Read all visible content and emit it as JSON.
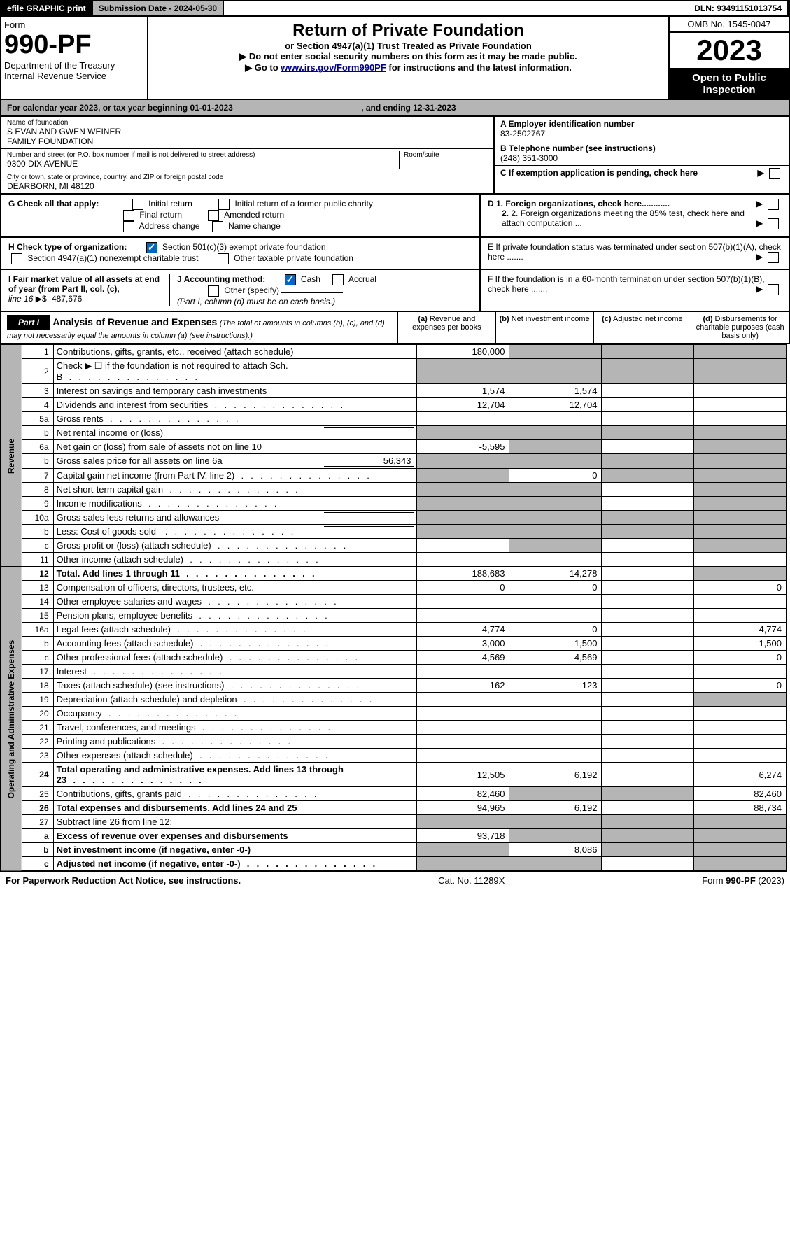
{
  "topbar": {
    "efile": "efile GRAPHIC print",
    "submission": "Submission Date - 2024-05-30",
    "dln": "DLN: 93491151013754"
  },
  "header": {
    "form_label": "Form",
    "form_num": "990-PF",
    "dept1": "Department of the Treasury",
    "dept2": "Internal Revenue Service",
    "title": "Return of Private Foundation",
    "subtitle": "or Section 4947(a)(1) Trust Treated as Private Foundation",
    "instr1": "▶ Do not enter social security numbers on this form as it may be made public.",
    "instr2_pre": "▶ Go to ",
    "instr2_link": "www.irs.gov/Form990PF",
    "instr2_post": " for instructions and the latest information.",
    "omb": "OMB No. 1545-0047",
    "year": "2023",
    "open1": "Open to Public",
    "open2": "Inspection"
  },
  "band": {
    "text_pre": "For calendar year 2023, or tax year beginning ",
    "beg": "01-01-2023",
    "text_mid": " , and ending ",
    "end": "12-31-2023"
  },
  "name_block": {
    "label_name": "Name of foundation",
    "name1": "S EVAN AND GWEN WEINER",
    "name2": "FAMILY FOUNDATION",
    "label_addr": "Number and street (or P.O. box number if mail is not delivered to street address)",
    "addr": "9300 DIX AVENUE",
    "room_label": "Room/suite",
    "label_city": "City or town, state or province, country, and ZIP or foreign postal code",
    "city": "DEARBORN, MI  48120",
    "label_ein": "A Employer identification number",
    "ein": "83-2502767",
    "label_phone": "B Telephone number (see instructions)",
    "phone": "(248) 351-3000",
    "label_c": "C If exemption application is pending, check here"
  },
  "g_block": {
    "label": "G Check all that apply:",
    "o1": "Initial return",
    "o2": "Initial return of a former public charity",
    "o3": "Final return",
    "o4": "Amended return",
    "o5": "Address change",
    "o6": "Name change"
  },
  "h_block": {
    "label": "H Check type of organization:",
    "o1": "Section 501(c)(3) exempt private foundation",
    "o2": "Section 4947(a)(1) nonexempt charitable trust",
    "o3": "Other taxable private foundation"
  },
  "i_block": {
    "label": "I Fair market value of all assets at end of year (from Part II, col. (c),",
    "line": "line 16",
    "val": "487,676"
  },
  "j_block": {
    "label": "J Accounting method:",
    "o1": "Cash",
    "o2": "Accrual",
    "o3": "Other (specify)",
    "note": "(Part I, column (d) must be on cash basis.)"
  },
  "d_block": {
    "d1": "D 1. Foreign organizations, check here............",
    "d2": "2. Foreign organizations meeting the 85% test, check here and attach computation ...",
    "e": "E  If private foundation status was terminated under section 507(b)(1)(A), check here .......",
    "f": "F  If the foundation is in a 60-month termination under section 507(b)(1)(B), check here ......."
  },
  "part1": {
    "tab": "Part I",
    "title": "Analysis of Revenue and Expenses",
    "title_note": "(The total of amounts in columns (b), (c), and (d) may not necessarily equal the amounts in column (a) (see instructions).)",
    "col_a": "Revenue and expenses per books",
    "col_b": "Net investment income",
    "col_c": "Adjusted net income",
    "col_d": "Disbursements for charitable purposes (cash basis only)",
    "pfx_a": "(a)",
    "pfx_b": "(b)",
    "pfx_c": "(c)",
    "pfx_d": "(d)"
  },
  "vert": {
    "rev": "Revenue",
    "exp": "Operating and Administrative Expenses"
  },
  "rows": [
    {
      "n": "1",
      "desc": "Contributions, gifts, grants, etc., received (attach schedule)",
      "a": "180,000",
      "grey_b": true,
      "grey_c": true,
      "grey_d": true
    },
    {
      "n": "2",
      "desc": "Check ▶ ☐ if the foundation is not required to attach Sch. B",
      "dotted": true,
      "grey_a": true,
      "grey_b": true,
      "grey_c": true,
      "grey_d": true
    },
    {
      "n": "3",
      "desc": "Interest on savings and temporary cash investments",
      "a": "1,574",
      "b": "1,574"
    },
    {
      "n": "4",
      "desc": "Dividends and interest from securities",
      "dotted": true,
      "a": "12,704",
      "b": "12,704"
    },
    {
      "n": "5a",
      "desc": "Gross rents",
      "dotted": true
    },
    {
      "n": "b",
      "desc": "Net rental income or (loss)",
      "underline": true,
      "grey_a": true,
      "grey_b": true,
      "grey_c": true,
      "grey_d": true
    },
    {
      "n": "6a",
      "desc": "Net gain or (loss) from sale of assets not on line 10",
      "a": "-5,595",
      "grey_b": true,
      "grey_d": true
    },
    {
      "n": "b",
      "desc": "Gross sales price for all assets on line 6a",
      "underline_val": "56,343",
      "grey_a": true,
      "grey_b": true,
      "grey_c": true,
      "grey_d": true
    },
    {
      "n": "7",
      "desc": "Capital gain net income (from Part IV, line 2)",
      "dotted": true,
      "grey_a": true,
      "b": "0",
      "grey_c": true,
      "grey_d": true
    },
    {
      "n": "8",
      "desc": "Net short-term capital gain",
      "dotted": true,
      "grey_a": true,
      "grey_b": true,
      "grey_d": true
    },
    {
      "n": "9",
      "desc": "Income modifications",
      "dotted": true,
      "grey_a": true,
      "grey_b": true,
      "grey_d": true
    },
    {
      "n": "10a",
      "desc": "Gross sales less returns and allowances",
      "underline": true,
      "grey_a": true,
      "grey_b": true,
      "grey_c": true,
      "grey_d": true
    },
    {
      "n": "b",
      "desc": "Less: Cost of goods sold",
      "dotted": true,
      "underline": true,
      "grey_a": true,
      "grey_b": true,
      "grey_c": true,
      "grey_d": true
    },
    {
      "n": "c",
      "desc": "Gross profit or (loss) (attach schedule)",
      "dotted": true,
      "grey_b": true,
      "grey_d": true
    },
    {
      "n": "11",
      "desc": "Other income (attach schedule)",
      "dotted": true
    },
    {
      "n": "12",
      "desc": "Total. Add lines 1 through 11",
      "bold": true,
      "dotted": true,
      "a": "188,683",
      "b": "14,278",
      "grey_d": true
    },
    {
      "n": "13",
      "desc": "Compensation of officers, directors, trustees, etc.",
      "a": "0",
      "b": "0",
      "d": "0"
    },
    {
      "n": "14",
      "desc": "Other employee salaries and wages",
      "dotted": true
    },
    {
      "n": "15",
      "desc": "Pension plans, employee benefits",
      "dotted": true
    },
    {
      "n": "16a",
      "desc": "Legal fees (attach schedule)",
      "dotted": true,
      "a": "4,774",
      "b": "0",
      "d": "4,774"
    },
    {
      "n": "b",
      "desc": "Accounting fees (attach schedule)",
      "dotted": true,
      "a": "3,000",
      "b": "1,500",
      "d": "1,500"
    },
    {
      "n": "c",
      "desc": "Other professional fees (attach schedule)",
      "dotted": true,
      "a": "4,569",
      "b": "4,569",
      "d": "0"
    },
    {
      "n": "17",
      "desc": "Interest",
      "dotted": true
    },
    {
      "n": "18",
      "desc": "Taxes (attach schedule) (see instructions)",
      "dotted": true,
      "a": "162",
      "b": "123",
      "d": "0"
    },
    {
      "n": "19",
      "desc": "Depreciation (attach schedule) and depletion",
      "dotted": true,
      "grey_d": true
    },
    {
      "n": "20",
      "desc": "Occupancy",
      "dotted": true
    },
    {
      "n": "21",
      "desc": "Travel, conferences, and meetings",
      "dotted": true
    },
    {
      "n": "22",
      "desc": "Printing and publications",
      "dotted": true
    },
    {
      "n": "23",
      "desc": "Other expenses (attach schedule)",
      "dotted": true
    },
    {
      "n": "24",
      "desc": "Total operating and administrative expenses. Add lines 13 through 23",
      "bold": true,
      "dotted": true,
      "a": "12,505",
      "b": "6,192",
      "d": "6,274"
    },
    {
      "n": "25",
      "desc": "Contributions, gifts, grants paid",
      "dotted": true,
      "a": "82,460",
      "grey_b": true,
      "grey_c": true,
      "d": "82,460"
    },
    {
      "n": "26",
      "desc": "Total expenses and disbursements. Add lines 24 and 25",
      "bold": true,
      "a": "94,965",
      "b": "6,192",
      "d": "88,734"
    },
    {
      "n": "27",
      "desc": "Subtract line 26 from line 12:",
      "grey_a": true,
      "grey_b": true,
      "grey_c": true,
      "grey_d": true
    },
    {
      "n": "a",
      "desc": "Excess of revenue over expenses and disbursements",
      "bold": true,
      "a": "93,718",
      "grey_b": true,
      "grey_c": true,
      "grey_d": true
    },
    {
      "n": "b",
      "desc": "Net investment income (if negative, enter -0-)",
      "bold": true,
      "grey_a": true,
      "b": "8,086",
      "grey_c": true,
      "grey_d": true
    },
    {
      "n": "c",
      "desc": "Adjusted net income (if negative, enter -0-)",
      "bold": true,
      "dotted": true,
      "grey_a": true,
      "grey_b": true,
      "grey_d": true
    }
  ],
  "footer": {
    "left": "For Paperwork Reduction Act Notice, see instructions.",
    "mid": "Cat. No. 11289X",
    "right": "Form 990-PF (2023)"
  }
}
